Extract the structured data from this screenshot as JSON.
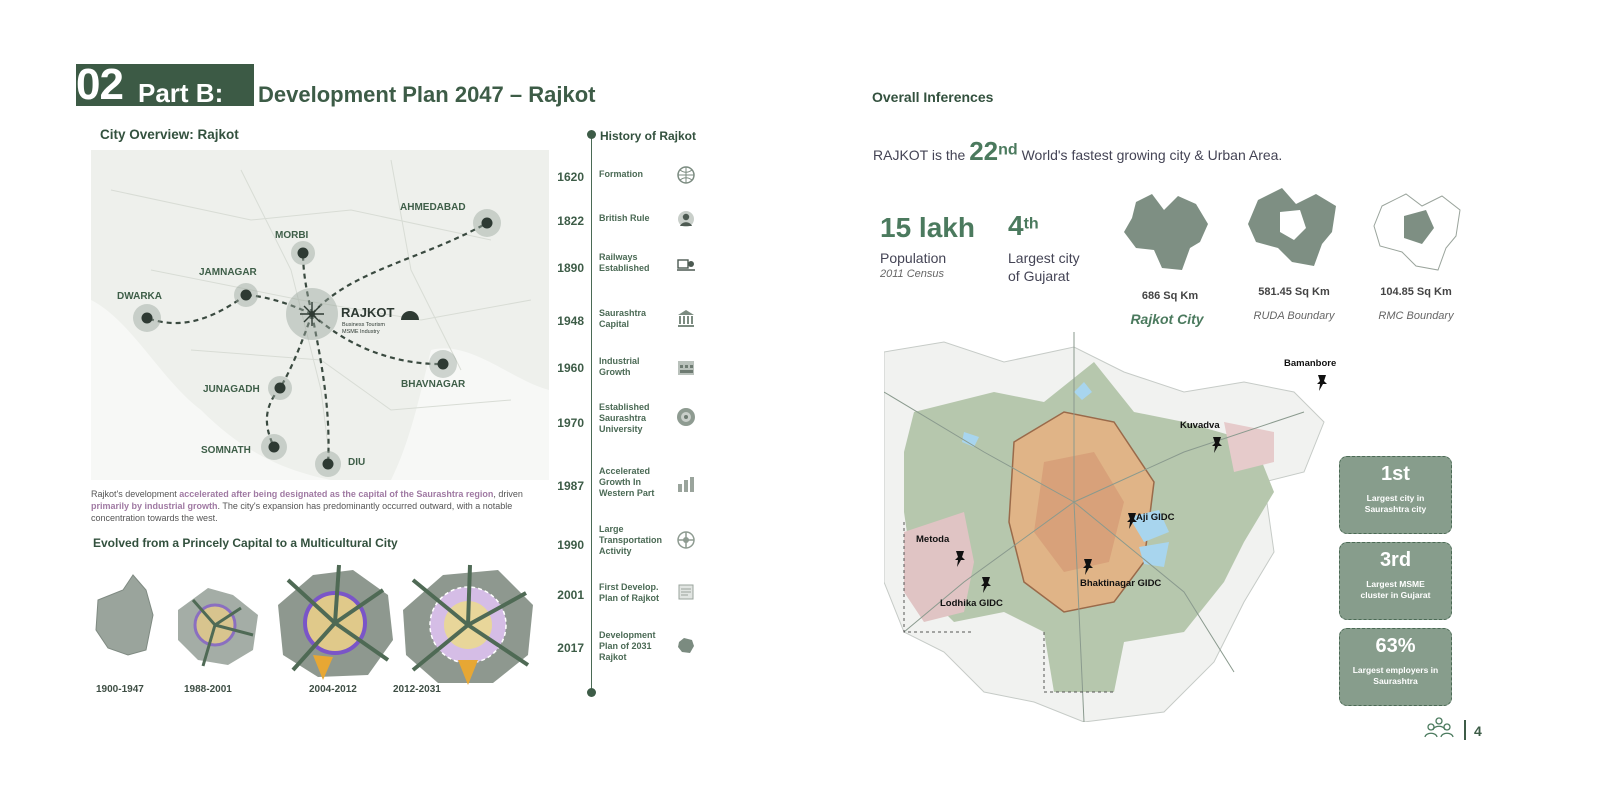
{
  "header": {
    "part_number": "02",
    "part_label": "Part B:",
    "title": "Development Plan 2047 – Rajkot"
  },
  "left": {
    "city_overview_title": "City Overview: Rajkot",
    "map": {
      "cities": [
        {
          "name": "AHMEDABAD"
        },
        {
          "name": "MORBI"
        },
        {
          "name": "JAMNAGAR"
        },
        {
          "name": "DWARKA"
        },
        {
          "name": "RAJKOT"
        },
        {
          "name": "BHAVNAGAR"
        },
        {
          "name": "JUNAGADH"
        },
        {
          "name": "SOMNATH"
        },
        {
          "name": "DIU"
        }
      ],
      "rajkot_tagline_1": "Business Tourism",
      "rajkot_tagline_2": "MSME Industry"
    },
    "overview_text": {
      "part1": "Rajkot's development ",
      "highlight1": "accelerated after being designated as the capital of the Saurashtra region",
      "part2": ", driven ",
      "highlight2": "primarily by industrial growth",
      "part3": ". The city's expansion has predominantly occurred outward, with a notable concentration towards the west."
    },
    "evolution_title": "Evolved from a Princely Capital to a Multicultural City",
    "stages": [
      "1900-1947",
      "1988-2001",
      "2004-2012",
      "2012-2031"
    ]
  },
  "timeline": {
    "title": "History of Rajkot",
    "events": [
      {
        "year": "1620",
        "event": "Formation",
        "icon": "globe-icon"
      },
      {
        "year": "1822",
        "event": "British Rule",
        "icon": "person-icon"
      },
      {
        "year": "1890",
        "event": "Railways\nEstablished",
        "icon": "train-icon"
      },
      {
        "year": "1948",
        "event": "Saurashtra\nCapital",
        "icon": "capitol-icon"
      },
      {
        "year": "1960",
        "event": "Industrial\nGrowth",
        "icon": "factory-icon"
      },
      {
        "year": "1970",
        "event": "Established\nSaurashtra\nUniversity",
        "icon": "university-icon"
      },
      {
        "year": "1987",
        "event": "Accelerated\nGrowth In\nWestern Part",
        "icon": "growth-icon"
      },
      {
        "year": "1990",
        "event": "Large\nTransportation\nActivity",
        "icon": "transport-icon"
      },
      {
        "year": "2001",
        "event": "First Develop.\nPlan of Rajkot",
        "icon": "plan-icon"
      },
      {
        "year": "2017",
        "event": "Development\nPlan of 2031\nRajkot",
        "icon": "map-icon"
      }
    ]
  },
  "right": {
    "title": "Overall Inferences",
    "claim": {
      "prefix": "RAJKOT is the ",
      "rank": "22",
      "rank_suffix": "nd",
      "suffix": " World's fastest growing city & Urban Area."
    },
    "population": {
      "value": "15 lakh",
      "label": "Population",
      "note": "2011 Census"
    },
    "rank_gujarat": {
      "value": "4",
      "suffix": "th",
      "label_1": "Largest city",
      "label_2": "of Gujarat"
    },
    "areas": [
      {
        "value": "686 Sq Km",
        "label": "Rajkot City"
      },
      {
        "value": "581.45 Sq Km",
        "label": "RUDA Boundary"
      },
      {
        "value": "104.85 Sq Km",
        "label": "RMC Boundary"
      }
    ],
    "map_labels": {
      "bamanbore": "Bamanbore",
      "kuvadva": "Kuvadva",
      "aji": "Aji GIDC",
      "metoda": "Metoda",
      "lodhika": "Lodhika GIDC",
      "bhaktinagar": "Bhaktinagar GIDC"
    },
    "badges": [
      {
        "value": "1st",
        "desc": "Largest city in\nSaurashtra city"
      },
      {
        "value": "3rd",
        "desc": "Largest MSME\ncluster in Gujarat"
      },
      {
        "value": "63%",
        "desc": "Largest employers in\nSaurashtra"
      }
    ]
  },
  "footer": {
    "page_number": "4"
  },
  "colors": {
    "primary": "#3d5c47",
    "accent": "#4b7a5e",
    "badge": "#879d8c",
    "highlight": "#a07aa3"
  }
}
